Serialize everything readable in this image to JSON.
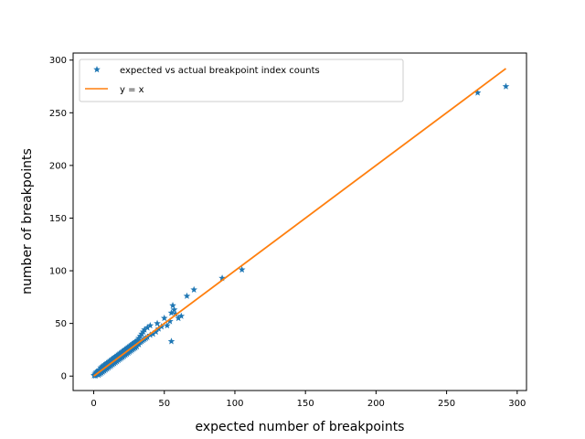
{
  "chart_data": {
    "type": "scatter",
    "xlabel": "expected number of breakpoints",
    "ylabel": "number of breakpoints",
    "xlim": [
      -14.6,
      306.6
    ],
    "ylim": [
      -13.7,
      306.7
    ],
    "x_ticks": [
      0,
      50,
      100,
      150,
      200,
      250,
      300
    ],
    "y_ticks": [
      0,
      50,
      100,
      150,
      200,
      250,
      300
    ],
    "grid": false,
    "legend_position": "upper-left",
    "series": [
      {
        "name": "expected vs actual breakpoint index counts",
        "marker": "star",
        "color": "#1f77b4",
        "points": [
          [
            0.2,
            0.5
          ],
          [
            0.5,
            1
          ],
          [
            1,
            2
          ],
          [
            1.2,
            0.3
          ],
          [
            1.5,
            3
          ],
          [
            2,
            1.5
          ],
          [
            2,
            4
          ],
          [
            2.5,
            2.5
          ],
          [
            3,
            3
          ],
          [
            3,
            5
          ],
          [
            3.5,
            1
          ],
          [
            4,
            4
          ],
          [
            4,
            6
          ],
          [
            4.5,
            2
          ],
          [
            5,
            5
          ],
          [
            5,
            8
          ],
          [
            5.5,
            3
          ],
          [
            6,
            6
          ],
          [
            6,
            9
          ],
          [
            6.5,
            4
          ],
          [
            7,
            7
          ],
          [
            7,
            10
          ],
          [
            7.5,
            5
          ],
          [
            8,
            8
          ],
          [
            8,
            11
          ],
          [
            8.5,
            6
          ],
          [
            9,
            9
          ],
          [
            9,
            12
          ],
          [
            9.5,
            7
          ],
          [
            10,
            10
          ],
          [
            10,
            13
          ],
          [
            10.5,
            8
          ],
          [
            11,
            11
          ],
          [
            11,
            14
          ],
          [
            11.5,
            9
          ],
          [
            12,
            12
          ],
          [
            12,
            15
          ],
          [
            12.5,
            10
          ],
          [
            13,
            13
          ],
          [
            13,
            16
          ],
          [
            13.5,
            11
          ],
          [
            14,
            14
          ],
          [
            14,
            17
          ],
          [
            14.5,
            12
          ],
          [
            15,
            15
          ],
          [
            15,
            18
          ],
          [
            15.5,
            13
          ],
          [
            16,
            16
          ],
          [
            16,
            19
          ],
          [
            16.5,
            14
          ],
          [
            17,
            17
          ],
          [
            17,
            20
          ],
          [
            17.5,
            15
          ],
          [
            18,
            18
          ],
          [
            18,
            21
          ],
          [
            18.5,
            16
          ],
          [
            19,
            19
          ],
          [
            19,
            22
          ],
          [
            19.5,
            17
          ],
          [
            20,
            20
          ],
          [
            20,
            23
          ],
          [
            20.5,
            18
          ],
          [
            21,
            21
          ],
          [
            21,
            24
          ],
          [
            21.5,
            19
          ],
          [
            22,
            22
          ],
          [
            22,
            25
          ],
          [
            22.5,
            20
          ],
          [
            23,
            23
          ],
          [
            23,
            26
          ],
          [
            23.5,
            21
          ],
          [
            24,
            24
          ],
          [
            24,
            27
          ],
          [
            24.5,
            22
          ],
          [
            25,
            25
          ],
          [
            25,
            28
          ],
          [
            25.5,
            23
          ],
          [
            26,
            26
          ],
          [
            26,
            29
          ],
          [
            26.5,
            24
          ],
          [
            27,
            27
          ],
          [
            27,
            30
          ],
          [
            27.5,
            25
          ],
          [
            28,
            28
          ],
          [
            28,
            31
          ],
          [
            28.5,
            26
          ],
          [
            29,
            29
          ],
          [
            29,
            32
          ],
          [
            29.5,
            27
          ],
          [
            30,
            30
          ],
          [
            30,
            33
          ],
          [
            30.5,
            28
          ],
          [
            31,
            31
          ],
          [
            31,
            34
          ],
          [
            32,
            30
          ],
          [
            32,
            36
          ],
          [
            33,
            32
          ],
          [
            33,
            38
          ],
          [
            34,
            33
          ],
          [
            34,
            40
          ],
          [
            35,
            34
          ],
          [
            35,
            42
          ],
          [
            36,
            35
          ],
          [
            36,
            44
          ],
          [
            37,
            36
          ],
          [
            38,
            37
          ],
          [
            38,
            46
          ],
          [
            40,
            39
          ],
          [
            40,
            48
          ],
          [
            42,
            40
          ],
          [
            44,
            42
          ],
          [
            45,
            50
          ],
          [
            46,
            45
          ],
          [
            48,
            47
          ],
          [
            50,
            55
          ],
          [
            52,
            48
          ],
          [
            54,
            52
          ],
          [
            55,
            60
          ],
          [
            55,
            33
          ],
          [
            56,
            67
          ],
          [
            57,
            63
          ],
          [
            58,
            59
          ],
          [
            60,
            55
          ],
          [
            62,
            57
          ],
          [
            66,
            76
          ],
          [
            71,
            82
          ],
          [
            91,
            93
          ],
          [
            105,
            101
          ],
          [
            272,
            269
          ],
          [
            292,
            275
          ]
        ]
      },
      {
        "name": "y = x",
        "marker": "line",
        "color": "#ff7f0e",
        "points": [
          [
            0,
            0
          ],
          [
            292,
            292
          ]
        ]
      }
    ]
  }
}
